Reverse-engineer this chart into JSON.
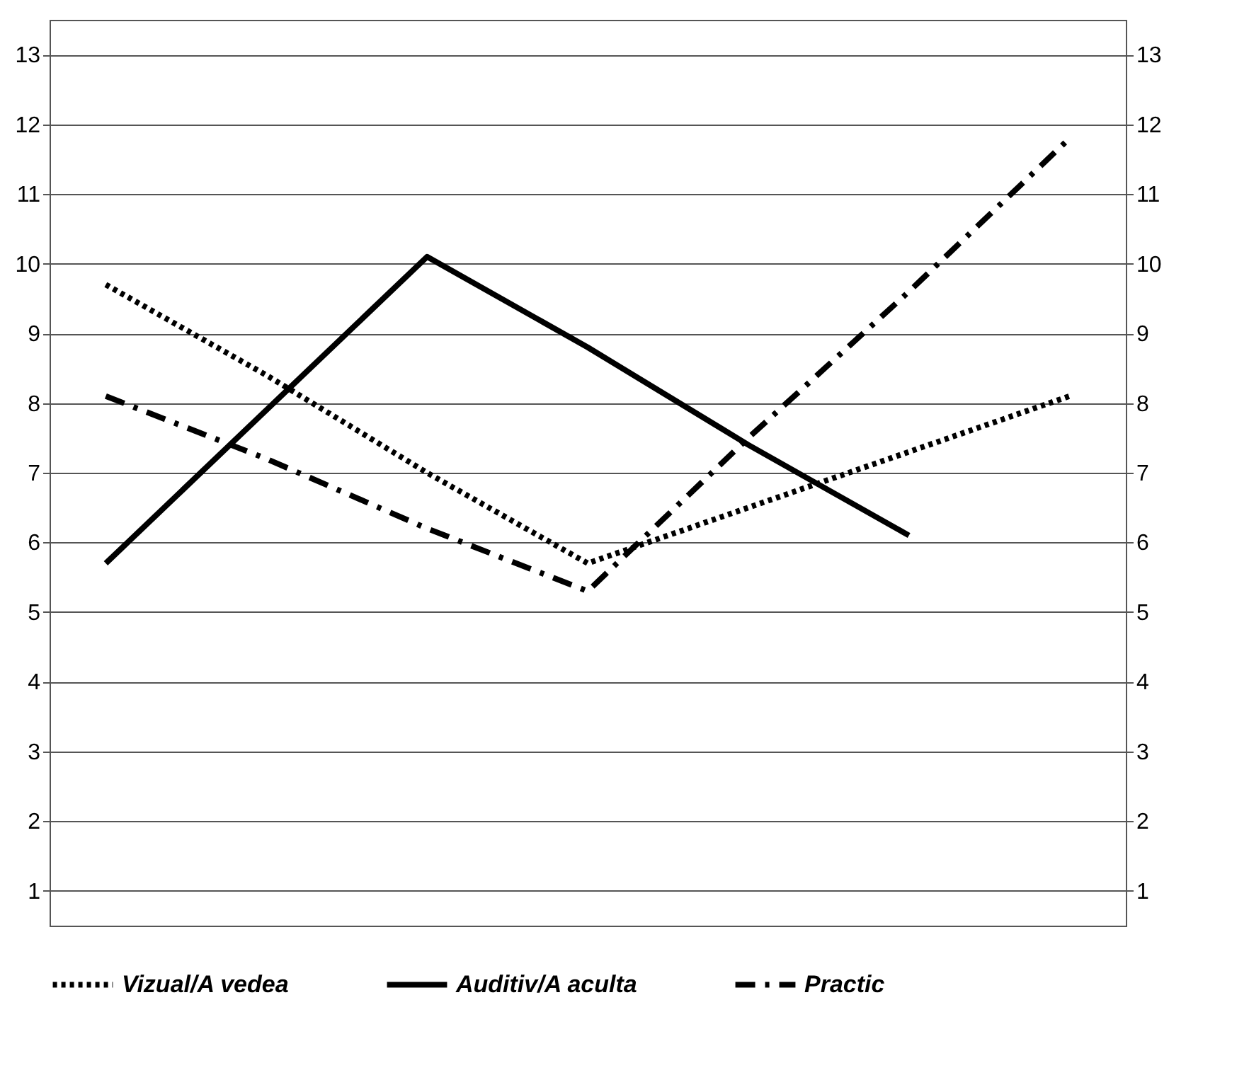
{
  "chart_data": {
    "type": "line",
    "categories": [
      null,
      null,
      null,
      null,
      null,
      null,
      null
    ],
    "ylim": [
      0.5,
      13.5
    ],
    "yticks": [
      1,
      2,
      3,
      4,
      5,
      6,
      7,
      8,
      9,
      10,
      11,
      12,
      13
    ],
    "y2lim": [
      0.5,
      13.5
    ],
    "y2ticks": [
      1,
      2,
      3,
      4,
      5,
      6,
      7,
      8,
      9,
      10,
      11,
      12,
      13
    ],
    "tick_labels": "y",
    "grid": "y",
    "legend": "bottom",
    "marker": "none",
    "series": [
      {
        "name": "Vizual/A vedea",
        "color": "#000000",
        "line_style": "dotted",
        "values": [
          9.7,
          8.4,
          7.0,
          5.7,
          6.5,
          7.3,
          8.1
        ]
      },
      {
        "name": "Auditiv/A aculta",
        "color": "#000000",
        "line_style": "solid",
        "values": [
          5.7,
          7.9,
          10.1,
          8.8,
          7.4,
          6.1,
          null
        ]
      },
      {
        "name": "Practic",
        "color": "#000000",
        "line_style": "dashed",
        "values": [
          8.1,
          7.2,
          6.2,
          5.3,
          7.5,
          9.6,
          11.8
        ]
      }
    ]
  }
}
